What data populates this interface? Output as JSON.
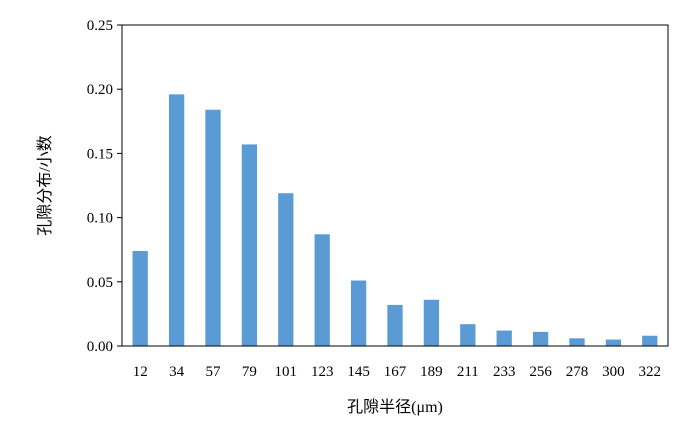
{
  "chart_data": {
    "type": "bar",
    "title": "",
    "xlabel": "孔隙半径(μm)",
    "ylabel": "孔隙分布/小数",
    "categories": [
      "12",
      "34",
      "57",
      "79",
      "101",
      "123",
      "145",
      "167",
      "189",
      "211",
      "233",
      "256",
      "278",
      "300",
      "322"
    ],
    "values": [
      0.074,
      0.196,
      0.184,
      0.157,
      0.119,
      0.087,
      0.051,
      0.032,
      0.036,
      0.017,
      0.012,
      0.011,
      0.006,
      0.005,
      0.008
    ],
    "ylim": [
      0,
      0.25
    ],
    "yticks": [
      "0.00",
      "0.05",
      "0.10",
      "0.15",
      "0.20",
      "0.25"
    ],
    "grid": false,
    "legend": "none",
    "bar_color": "#5b9bd5",
    "frame_color": "#000000"
  }
}
